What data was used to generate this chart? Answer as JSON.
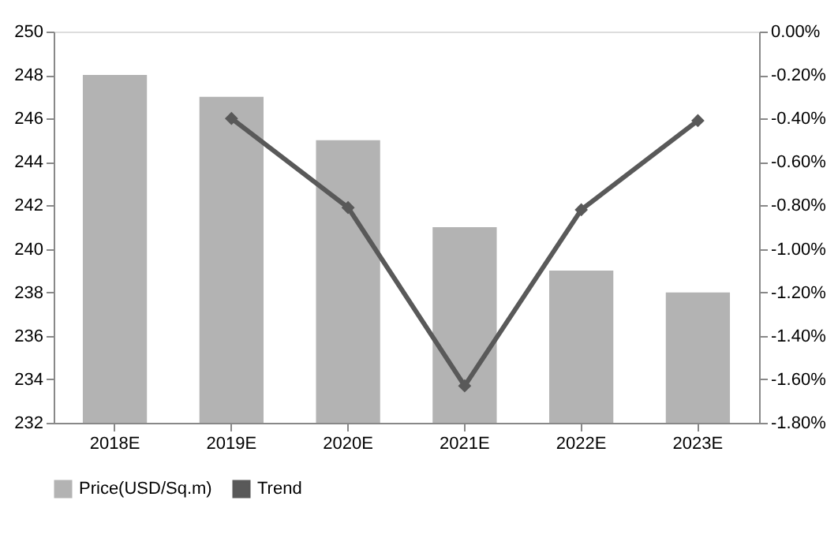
{
  "chart_data": {
    "type": "bar",
    "categories": [
      "2018E",
      "2019E",
      "2020E",
      "2021E",
      "2022E",
      "2023E"
    ],
    "series": [
      {
        "name": "Price(USD/Sq.m)",
        "color": "#b3b3b3",
        "values": [
          248,
          247,
          245,
          241,
          239,
          238
        ]
      },
      {
        "name": "Trend",
        "type": "line",
        "axis": "y2",
        "color": "#595959",
        "marker": "diamond",
        "values": [
          null,
          -0.4,
          -0.81,
          -1.63,
          -0.82,
          -0.41
        ]
      }
    ],
    "ylim": [
      232,
      250
    ],
    "yticks": [
      232,
      234,
      236,
      238,
      240,
      242,
      244,
      246,
      248,
      250
    ],
    "y2lim": [
      -1.8,
      0
    ],
    "y2ticks": [
      {
        "value": -1.8,
        "label": "-1.80%"
      },
      {
        "value": -1.6,
        "label": "-1.60%"
      },
      {
        "value": -1.4,
        "label": "-1.40%"
      },
      {
        "value": -1.2,
        "label": "-1.20%"
      },
      {
        "value": -1.0,
        "label": "-1.00%"
      },
      {
        "value": -0.8,
        "label": "-0.80%"
      },
      {
        "value": -0.6,
        "label": "-0.60%"
      },
      {
        "value": -0.4,
        "label": "-0.40%"
      },
      {
        "value": -0.2,
        "label": "-0.20%"
      },
      {
        "value": 0,
        "label": "0.00%"
      }
    ],
    "grid": false,
    "legend": "bottom",
    "line_style": "solid"
  }
}
